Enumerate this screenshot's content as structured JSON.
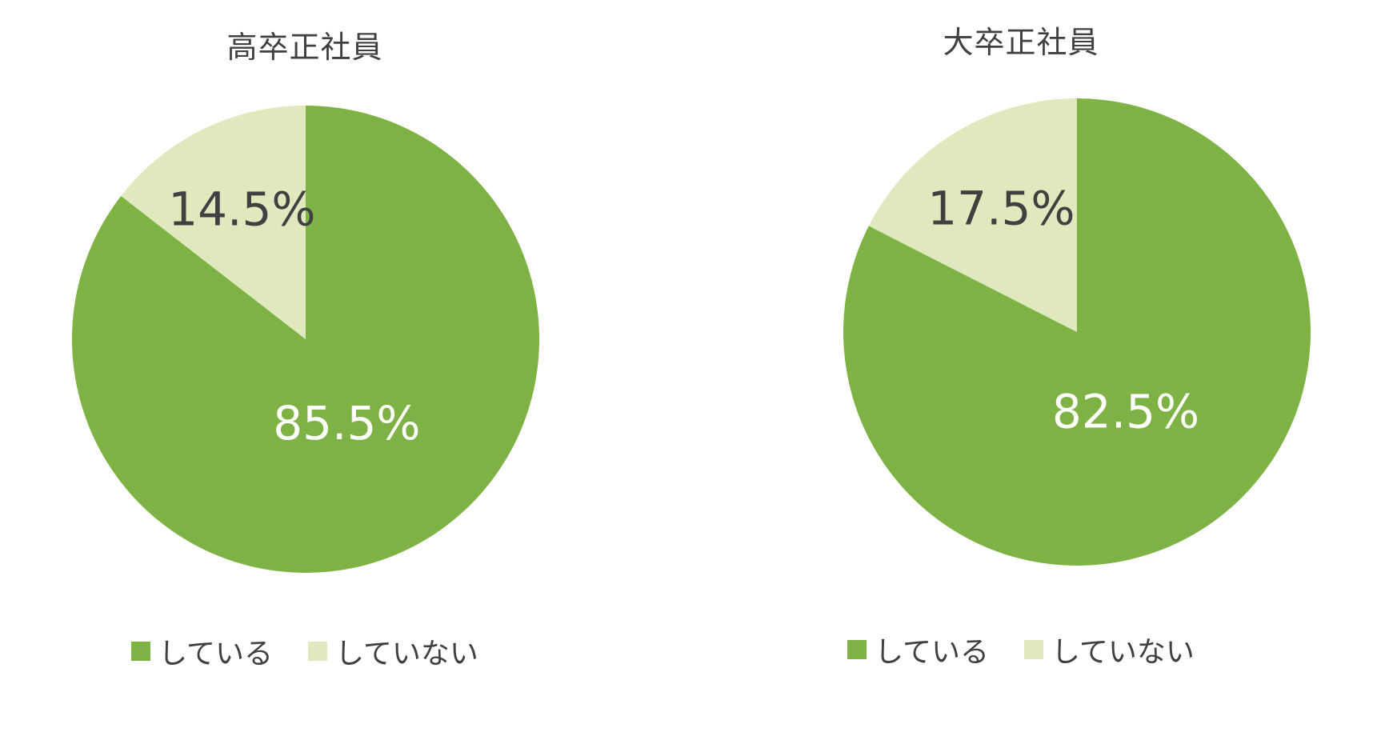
{
  "chart_data": [
    {
      "type": "pie",
      "title": "高卒正社員",
      "categories": [
        "している",
        "していない"
      ],
      "values": [
        85.5,
        14.5
      ],
      "value_labels": [
        "85.5%",
        "14.5%"
      ],
      "colors": [
        "#7fb244",
        "#dfe9bd"
      ],
      "label_colors": [
        "#ffffff",
        "#404040"
      ],
      "legend": "bottom"
    },
    {
      "type": "pie",
      "title": "大卒正社員",
      "categories": [
        "している",
        "していない"
      ],
      "values": [
        82.5,
        17.5
      ],
      "value_labels": [
        "82.5%",
        "17.5%"
      ],
      "colors": [
        "#7fb244",
        "#dfe9bd"
      ],
      "label_colors": [
        "#ffffff",
        "#404040"
      ],
      "legend": "bottom"
    }
  ]
}
